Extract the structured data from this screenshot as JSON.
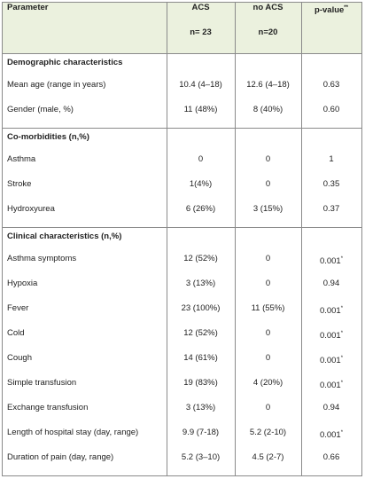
{
  "table": {
    "header": {
      "columns": [
        "Parameter",
        "ACS",
        "no ACS",
        "p-value"
      ],
      "p_note": "**",
      "subheaders": [
        "n= 23",
        "n=20"
      ]
    },
    "sections": [
      {
        "title": "Demographic characteristics",
        "rows": [
          {
            "cells": [
              "Mean age (range in years)",
              "10.4 (4–18)",
              "12.6 (4–18)",
              "0.63"
            ]
          },
          {
            "cells": [
              "Gender (male, %)",
              "11 (48%)",
              "8 (40%)",
              "0.60"
            ]
          }
        ]
      },
      {
        "title": "Co-morbidities (n,%)",
        "rows": [
          {
            "cells": [
              "Asthma",
              "0",
              "0",
              "1"
            ]
          },
          {
            "cells": [
              "Stroke",
              "1(4%)",
              "0",
              "0.35"
            ]
          },
          {
            "cells": [
              "Hydroxyurea",
              "6 (26%)",
              "3 (15%)",
              "0.37"
            ]
          }
        ]
      },
      {
        "title": "Clinical characteristics  (n,%)",
        "rows": [
          {
            "cells": [
              "Asthma symptoms",
              "12 (52%)",
              "0",
              "0.001"
            ],
            "p_note": "*"
          },
          {
            "cells": [
              "Hypoxia",
              "3 (13%)",
              "0",
              "0.94"
            ]
          },
          {
            "cells": [
              "Fever",
              "23 (100%)",
              "11 (55%)",
              "0.001"
            ],
            "p_note": "*"
          },
          {
            "cells": [
              "Cold",
              "12 (52%)",
              "0",
              "0.001"
            ],
            "p_note": "*"
          },
          {
            "cells": [
              "Cough",
              "14 (61%)",
              "0",
              "0.001"
            ],
            "p_note": "*"
          },
          {
            "cells": [
              "Simple transfusion",
              "19 (83%)",
              "4 (20%)",
              "0.001"
            ],
            "p_note": "*"
          },
          {
            "cells": [
              "Exchange transfusion",
              "3 (13%)",
              "0",
              "0.94"
            ]
          },
          {
            "cells": [
              "Length of hospital stay (day, range)",
              "9.9 (7-18)",
              "5.2 (2-10)",
              "0.001"
            ],
            "p_note": "*"
          },
          {
            "cells": [
              "Duration of pain (day, range)",
              "5.2 (3–10)",
              "4.5 (2-7)",
              "0.66"
            ]
          }
        ]
      }
    ]
  }
}
